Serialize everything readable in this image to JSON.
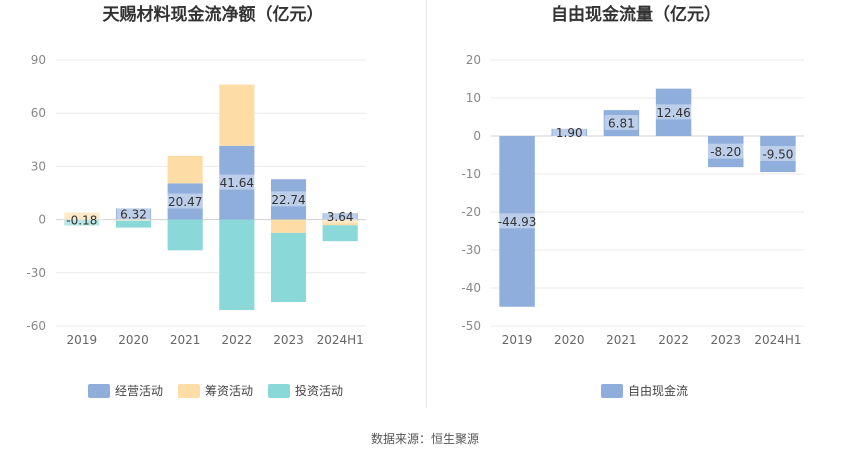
{
  "source_label": "数据来源：恒生聚源",
  "chart_data": [
    {
      "type": "bar",
      "stacked": true,
      "title": "天赐材料现金流净额（亿元）",
      "categories": [
        "2019",
        "2020",
        "2021",
        "2022",
        "2023",
        "2024H1"
      ],
      "ylim": [
        -60,
        90
      ],
      "yticks": [
        90,
        60,
        30,
        0,
        -30,
        -60
      ],
      "grid": true,
      "legend_position": "bottom",
      "series": [
        {
          "name": "经营活动",
          "color": "#8faedc",
          "values": [
            -0.18,
            6.32,
            20.47,
            41.64,
            22.74,
            3.64
          ],
          "labels": [
            "-0.18",
            "6.32",
            "20.47",
            "41.64",
            "22.74",
            "3.64"
          ]
        },
        {
          "name": "筹资活动",
          "color": "#fedca5",
          "values": [
            4.0,
            -0.5,
            15.5,
            34.5,
            -7.5,
            -3.2
          ]
        },
        {
          "name": "投资活动",
          "color": "#8ad8d8",
          "values": [
            -3.2,
            -4.0,
            -17.3,
            -51.0,
            -39.0,
            -9.0
          ]
        }
      ]
    },
    {
      "type": "bar",
      "title": "自由现金流量（亿元）",
      "categories": [
        "2019",
        "2020",
        "2021",
        "2022",
        "2023",
        "2024H1"
      ],
      "ylim": [
        -50,
        20
      ],
      "yticks": [
        20,
        10,
        0,
        -10,
        -20,
        -30,
        -40,
        -50
      ],
      "grid": true,
      "legend_position": "bottom",
      "series": [
        {
          "name": "自由现金流",
          "color": "#8faedc",
          "values": [
            -44.93,
            1.9,
            6.81,
            12.46,
            -8.2,
            -9.5
          ],
          "labels": [
            "-44.93",
            "1.90",
            "6.81",
            "12.46",
            "-8.20",
            "-9.50"
          ]
        }
      ]
    }
  ]
}
